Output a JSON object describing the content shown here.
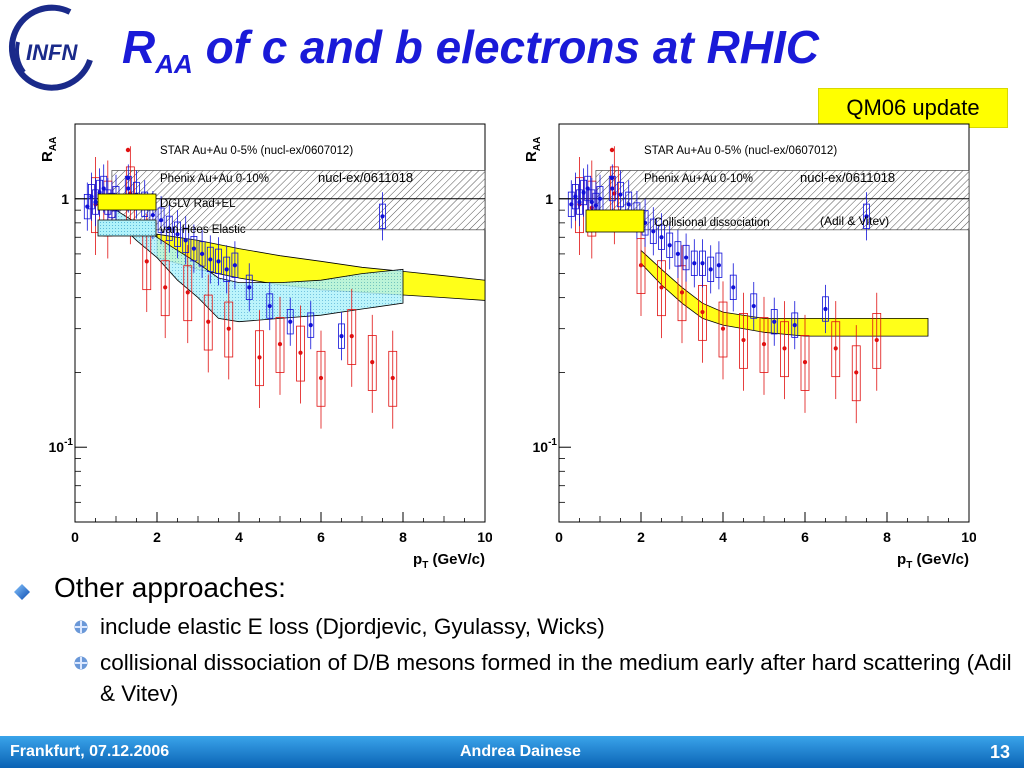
{
  "slide": {
    "title_main": "R",
    "title_sub": "AA",
    "title_rest": " of c and b electrons at RHIC",
    "badge": "QM06 update",
    "logo_text": "INFN"
  },
  "bullets": {
    "l1": "Other approaches:",
    "l2a": "include elastic E loss (Djordjevic, Gyulassy, Wicks)",
    "l2b": "collisional dissociation of D/B mesons formed in the medium early after hard scattering (Adil & Vitev)"
  },
  "footer": {
    "left": "Frankfurt, 07.12.2006",
    "center": "Andrea Dainese",
    "page": "13"
  },
  "colors": {
    "title_blue": "#1a1ad8",
    "badge_yellow": "#ffff00",
    "star_red": "#e01010",
    "phenix_blue": "#1010d8",
    "dglv_yellow": "#ffff00",
    "vanhees_cyan": "#a0f0f8",
    "footer_blue": "#1a7ad0"
  },
  "chart_data": [
    {
      "type": "scatter",
      "xlabel_main": "p",
      "xlabel_sub": "T",
      "xlabel_rest": " (GeV/c)",
      "ylabel_main": "R",
      "ylabel_sub": "AA",
      "xlim": [
        0,
        10
      ],
      "ylim": [
        0.05,
        2.0
      ],
      "yscale": "log",
      "xticks": [
        "0",
        "2",
        "4",
        "6",
        "8",
        "10"
      ],
      "yticks": [
        {
          "value": 1,
          "label": "1"
        },
        {
          "value": 0.1,
          "label": "10",
          "exp": "-1"
        }
      ],
      "normalization_band": [
        0.75,
        1.3
      ],
      "legend": {
        "star": "STAR Au+Au 0-5% (nucl-ex/0607012)",
        "phenix": "Phenix Au+Au  0-10%",
        "phenix_ref": "nucl-ex/0611018",
        "band1": "DGLV Rad+EL",
        "band2": "van Hees Elastic"
      },
      "series": [
        {
          "name": "STAR Au+Au 0-5% (nucl-ex/0607012)",
          "x": [
            0.5,
            0.8,
            1.35,
            1.75,
            2.2,
            2.75,
            3.25,
            3.75,
            4.5,
            5.0,
            5.5,
            6.0,
            6.75,
            7.25,
            7.75
          ],
          "y": [
            0.95,
            0.92,
            1.05,
            0.56,
            0.44,
            0.42,
            0.32,
            0.3,
            0.23,
            0.26,
            0.24,
            0.19,
            0.28,
            0.22,
            0.19
          ]
        },
        {
          "name": "Phenix Au+Au  0-10%",
          "x": [
            0.3,
            0.4,
            0.5,
            0.6,
            0.7,
            0.8,
            0.9,
            1.0,
            1.3,
            1.5,
            1.7,
            1.9,
            2.1,
            2.3,
            2.5,
            2.7,
            2.9,
            3.1,
            3.3,
            3.5,
            3.7,
            3.9,
            4.25,
            4.75,
            5.25,
            5.75,
            6.5,
            7.5
          ],
          "y": [
            0.93,
            1.02,
            0.97,
            1.06,
            1.1,
            0.97,
            0.94,
            1.0,
            1.1,
            1.04,
            0.95,
            0.86,
            0.82,
            0.76,
            0.72,
            0.68,
            0.63,
            0.6,
            0.57,
            0.56,
            0.52,
            0.54,
            0.44,
            0.37,
            0.32,
            0.31,
            0.28,
            0.85
          ]
        },
        {
          "name": "DGLV Rad+EL",
          "x": [
            2.0,
            3.0,
            4.0,
            5.0,
            6.0,
            7.0,
            8.0,
            9.0,
            10.0
          ],
          "ylow": [
            0.58,
            0.52,
            0.48,
            0.45,
            0.43,
            0.42,
            0.41,
            0.4,
            0.39
          ],
          "yhigh": [
            0.72,
            0.68,
            0.63,
            0.59,
            0.56,
            0.53,
            0.51,
            0.49,
            0.47
          ]
        },
        {
          "name": "van Hees Elastic",
          "x": [
            1.0,
            1.5,
            2.0,
            2.5,
            3.0,
            3.5,
            4.0,
            5.0,
            6.0,
            7.0,
            8.0
          ],
          "ylow": [
            0.82,
            0.68,
            0.58,
            0.47,
            0.4,
            0.33,
            0.32,
            0.33,
            0.34,
            0.36,
            0.38
          ],
          "yhigh": [
            0.9,
            0.8,
            0.7,
            0.62,
            0.55,
            0.48,
            0.46,
            0.46,
            0.47,
            0.5,
            0.52
          ]
        }
      ]
    },
    {
      "type": "scatter",
      "xlabel_main": "p",
      "xlabel_sub": "T",
      "xlabel_rest": " (GeV/c)",
      "ylabel_main": "R",
      "ylabel_sub": "AA",
      "xlim": [
        0,
        10
      ],
      "ylim": [
        0.05,
        2.0
      ],
      "yscale": "log",
      "xticks": [
        "0",
        "2",
        "4",
        "6",
        "8",
        "10"
      ],
      "yticks": [
        {
          "value": 1,
          "label": "1"
        },
        {
          "value": 0.1,
          "label": "10",
          "exp": "-1"
        }
      ],
      "normalization_band": [
        0.75,
        1.3
      ],
      "legend": {
        "star": "STAR Au+Au 0-5% (nucl-ex/0607012)",
        "phenix": "Phenix Au+Au  0-10%",
        "phenix_ref": "nucl-ex/0611018",
        "band1": "Collisional dissociation",
        "band1_ref": "(Adil & Vitev)"
      },
      "series": [
        {
          "name": "STAR Au+Au 0-5% (nucl-ex/0607012)",
          "x": [
            0.5,
            0.8,
            1.35,
            2.0,
            2.5,
            3.0,
            3.5,
            4.0,
            4.5,
            5.0,
            5.5,
            6.0,
            6.75,
            7.25,
            7.75
          ],
          "y": [
            0.95,
            0.92,
            1.05,
            0.54,
            0.44,
            0.42,
            0.35,
            0.3,
            0.27,
            0.26,
            0.25,
            0.22,
            0.25,
            0.2,
            0.27
          ]
        },
        {
          "name": "Phenix Au+Au  0-10%",
          "x": [
            0.3,
            0.4,
            0.5,
            0.6,
            0.7,
            0.8,
            0.9,
            1.0,
            1.3,
            1.5,
            1.7,
            1.9,
            2.1,
            2.3,
            2.5,
            2.7,
            2.9,
            3.1,
            3.3,
            3.5,
            3.7,
            3.9,
            4.25,
            4.75,
            5.25,
            5.75,
            6.5,
            7.5
          ],
          "y": [
            0.95,
            1.02,
            0.97,
            1.06,
            1.1,
            0.97,
            0.94,
            1.0,
            1.1,
            1.04,
            0.95,
            0.86,
            0.8,
            0.74,
            0.7,
            0.65,
            0.6,
            0.58,
            0.55,
            0.55,
            0.52,
            0.54,
            0.44,
            0.37,
            0.32,
            0.31,
            0.36,
            0.85
          ]
        },
        {
          "name": "Collisional dissociation",
          "x": [
            2.0,
            2.5,
            3.0,
            3.5,
            4.0,
            5.0,
            6.0,
            7.0,
            8.0,
            9.0
          ],
          "ylow": [
            0.55,
            0.45,
            0.38,
            0.33,
            0.31,
            0.29,
            0.28,
            0.28,
            0.28,
            0.28
          ],
          "yhigh": [
            0.62,
            0.52,
            0.44,
            0.38,
            0.35,
            0.33,
            0.33,
            0.33,
            0.33,
            0.33
          ]
        }
      ]
    }
  ]
}
